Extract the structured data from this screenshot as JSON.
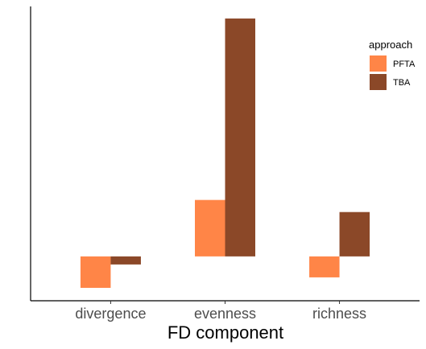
{
  "chart_data": {
    "type": "bar",
    "xlabel": "FD component",
    "ylabel": "",
    "categories": [
      "divergence",
      "evenness",
      "richness"
    ],
    "series": [
      {
        "name": "PFTA",
        "values": [
          -0.39,
          0.7,
          -0.26
        ]
      },
      {
        "name": "TBA",
        "values": [
          -0.1,
          2.95,
          0.55
        ]
      }
    ],
    "ylim": [
      -0.55,
      3.1
    ],
    "grid": false,
    "legend": {
      "title": "approach",
      "position": "top-right"
    },
    "colors": {
      "PFTA": "#ff8547",
      "TBA": "#8b4828"
    }
  }
}
